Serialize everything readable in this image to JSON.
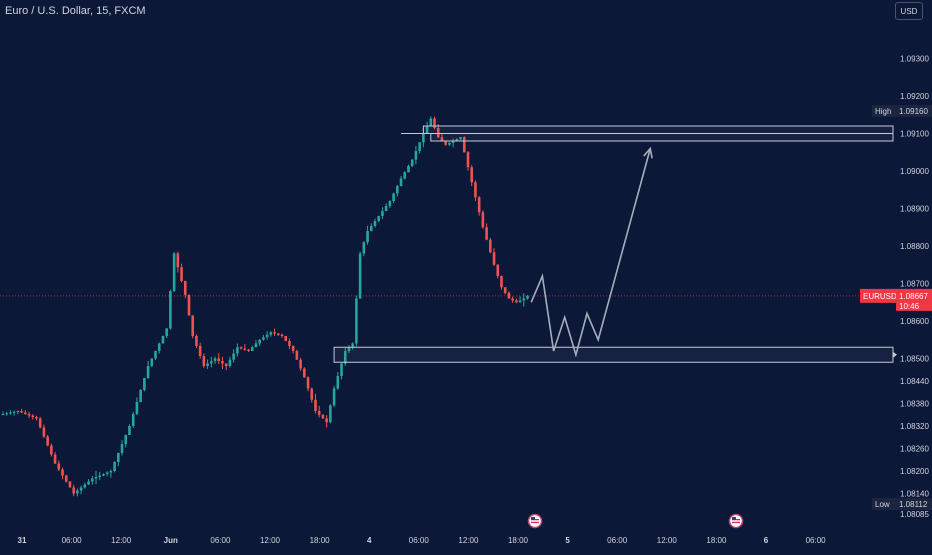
{
  "header": {
    "symbol_title": "Euro / U.S. Dollar, 15, FXCM",
    "currency_button": "USD"
  },
  "colors": {
    "background": "#0c1838",
    "text": "#d1d4dc",
    "up": "#26a69a",
    "down": "#ef5350",
    "zone": "#c3c9d6",
    "projection": "#a7adba",
    "last_price": "#f23645"
  },
  "price_axis": {
    "labels": [
      "1.09300",
      "1.09200",
      "1.09100",
      "1.09000",
      "1.08900",
      "1.08800",
      "1.08700",
      "1.08600",
      "1.08500",
      "1.08440",
      "1.08380",
      "1.08320",
      "1.08260",
      "1.08200",
      "1.08140",
      "1.08085"
    ],
    "high_badge": {
      "label": "High",
      "value": "1.09160"
    },
    "low_badge": {
      "label": "Low",
      "value": "1.08112"
    },
    "last_price_badge": {
      "symbol": "EURUSD",
      "value": "1.08667",
      "countdown": "10:46"
    }
  },
  "time_axis": {
    "labels": [
      "31",
      "06:00",
      "12:00",
      "Jun",
      "06:00",
      "12:00",
      "18:00",
      "4",
      "06:00",
      "12:00",
      "18:00",
      "5",
      "06:00",
      "12:00",
      "18:00",
      "6",
      "06:00"
    ]
  },
  "event_markers": [
    "us-flag-icon",
    "us-flag-icon"
  ],
  "chart_data": {
    "type": "candlestick",
    "title": "Euro / U.S. Dollar, 15, FXCM",
    "xlabel": "",
    "ylabel": "",
    "timeframe": "15",
    "ylim": [
      1.0806,
      1.0938
    ],
    "grid": false,
    "price_path": [
      {
        "t": 0,
        "p": 1.0835
      },
      {
        "t": 5,
        "p": 1.0836
      },
      {
        "t": 10,
        "p": 1.0834
      },
      {
        "t": 15,
        "p": 1.0822
      },
      {
        "t": 20,
        "p": 1.0814
      },
      {
        "t": 25,
        "p": 1.0818
      },
      {
        "t": 30,
        "p": 1.082
      },
      {
        "t": 35,
        "p": 1.0832
      },
      {
        "t": 40,
        "p": 1.0848
      },
      {
        "t": 45,
        "p": 1.0858
      },
      {
        "t": 47,
        "p": 1.0878
      },
      {
        "t": 50,
        "p": 1.0867
      },
      {
        "t": 52,
        "p": 1.0856
      },
      {
        "t": 55,
        "p": 1.0848
      },
      {
        "t": 58,
        "p": 1.085
      },
      {
        "t": 61,
        "p": 1.0848
      },
      {
        "t": 64,
        "p": 1.0853
      },
      {
        "t": 67,
        "p": 1.0852
      },
      {
        "t": 70,
        "p": 1.0855
      },
      {
        "t": 73,
        "p": 1.0857
      },
      {
        "t": 76,
        "p": 1.0856
      },
      {
        "t": 79,
        "p": 1.0852
      },
      {
        "t": 82,
        "p": 1.0845
      },
      {
        "t": 85,
        "p": 1.0836
      },
      {
        "t": 88,
        "p": 1.0833
      },
      {
        "t": 90,
        "p": 1.0842
      },
      {
        "t": 93,
        "p": 1.0852
      },
      {
        "t": 95,
        "p": 1.0854
      },
      {
        "t": 97,
        "p": 1.0878
      },
      {
        "t": 99,
        "p": 1.0884
      },
      {
        "t": 102,
        "p": 1.0888
      },
      {
        "t": 105,
        "p": 1.0892
      },
      {
        "t": 108,
        "p": 1.0898
      },
      {
        "t": 111,
        "p": 1.0903
      },
      {
        "t": 114,
        "p": 1.091
      },
      {
        "t": 116,
        "p": 1.0914
      },
      {
        "t": 118,
        "p": 1.0909
      },
      {
        "t": 120,
        "p": 1.0907
      },
      {
        "t": 122,
        "p": 1.0908
      },
      {
        "t": 124,
        "p": 1.0909
      },
      {
        "t": 127,
        "p": 1.0897
      },
      {
        "t": 130,
        "p": 1.0885
      },
      {
        "t": 133,
        "p": 1.0875
      },
      {
        "t": 135,
        "p": 1.0869
      },
      {
        "t": 137,
        "p": 1.0866
      },
      {
        "t": 139,
        "p": 1.0865
      },
      {
        "t": 141,
        "p": 1.0866
      },
      {
        "t": 142,
        "p": 1.08667
      }
    ],
    "last_price": 1.08667,
    "high": 1.0916,
    "low": 1.08112,
    "zones": [
      {
        "from": 1.091,
        "to": 1.0912
      },
      {
        "from": 1.0908,
        "to": 1.091
      },
      {
        "from": 1.0849,
        "to": 1.0853
      }
    ],
    "projection": [
      {
        "t": 142,
        "p": 1.0865
      },
      {
        "t": 145,
        "p": 1.0872
      },
      {
        "t": 148,
        "p": 1.0852
      },
      {
        "t": 151,
        "p": 1.0861
      },
      {
        "t": 154,
        "p": 1.0851
      },
      {
        "t": 157,
        "p": 1.0862
      },
      {
        "t": 160,
        "p": 1.0855
      },
      {
        "t": 174,
        "p": 1.0906
      }
    ]
  }
}
